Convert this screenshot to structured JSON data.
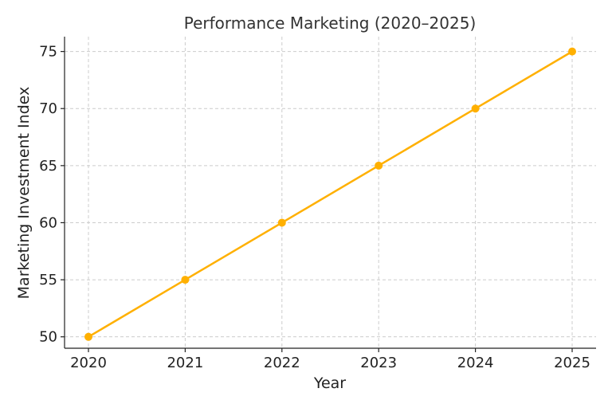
{
  "chart_data": {
    "type": "line",
    "title": "Performance Marketing (2020–2025)",
    "xlabel": "Year",
    "ylabel": "Marketing Investment Index",
    "x": [
      "2020",
      "2021",
      "2022",
      "2023",
      "2024",
      "2025"
    ],
    "series": [
      {
        "values": [
          50,
          55,
          60,
          65,
          70,
          75
        ],
        "color": "#FFB000"
      }
    ],
    "yticks": [
      "50",
      "55",
      "60",
      "65",
      "70",
      "75"
    ],
    "ylim": [
      49,
      76.3
    ],
    "grid": true,
    "marker": "circle"
  }
}
